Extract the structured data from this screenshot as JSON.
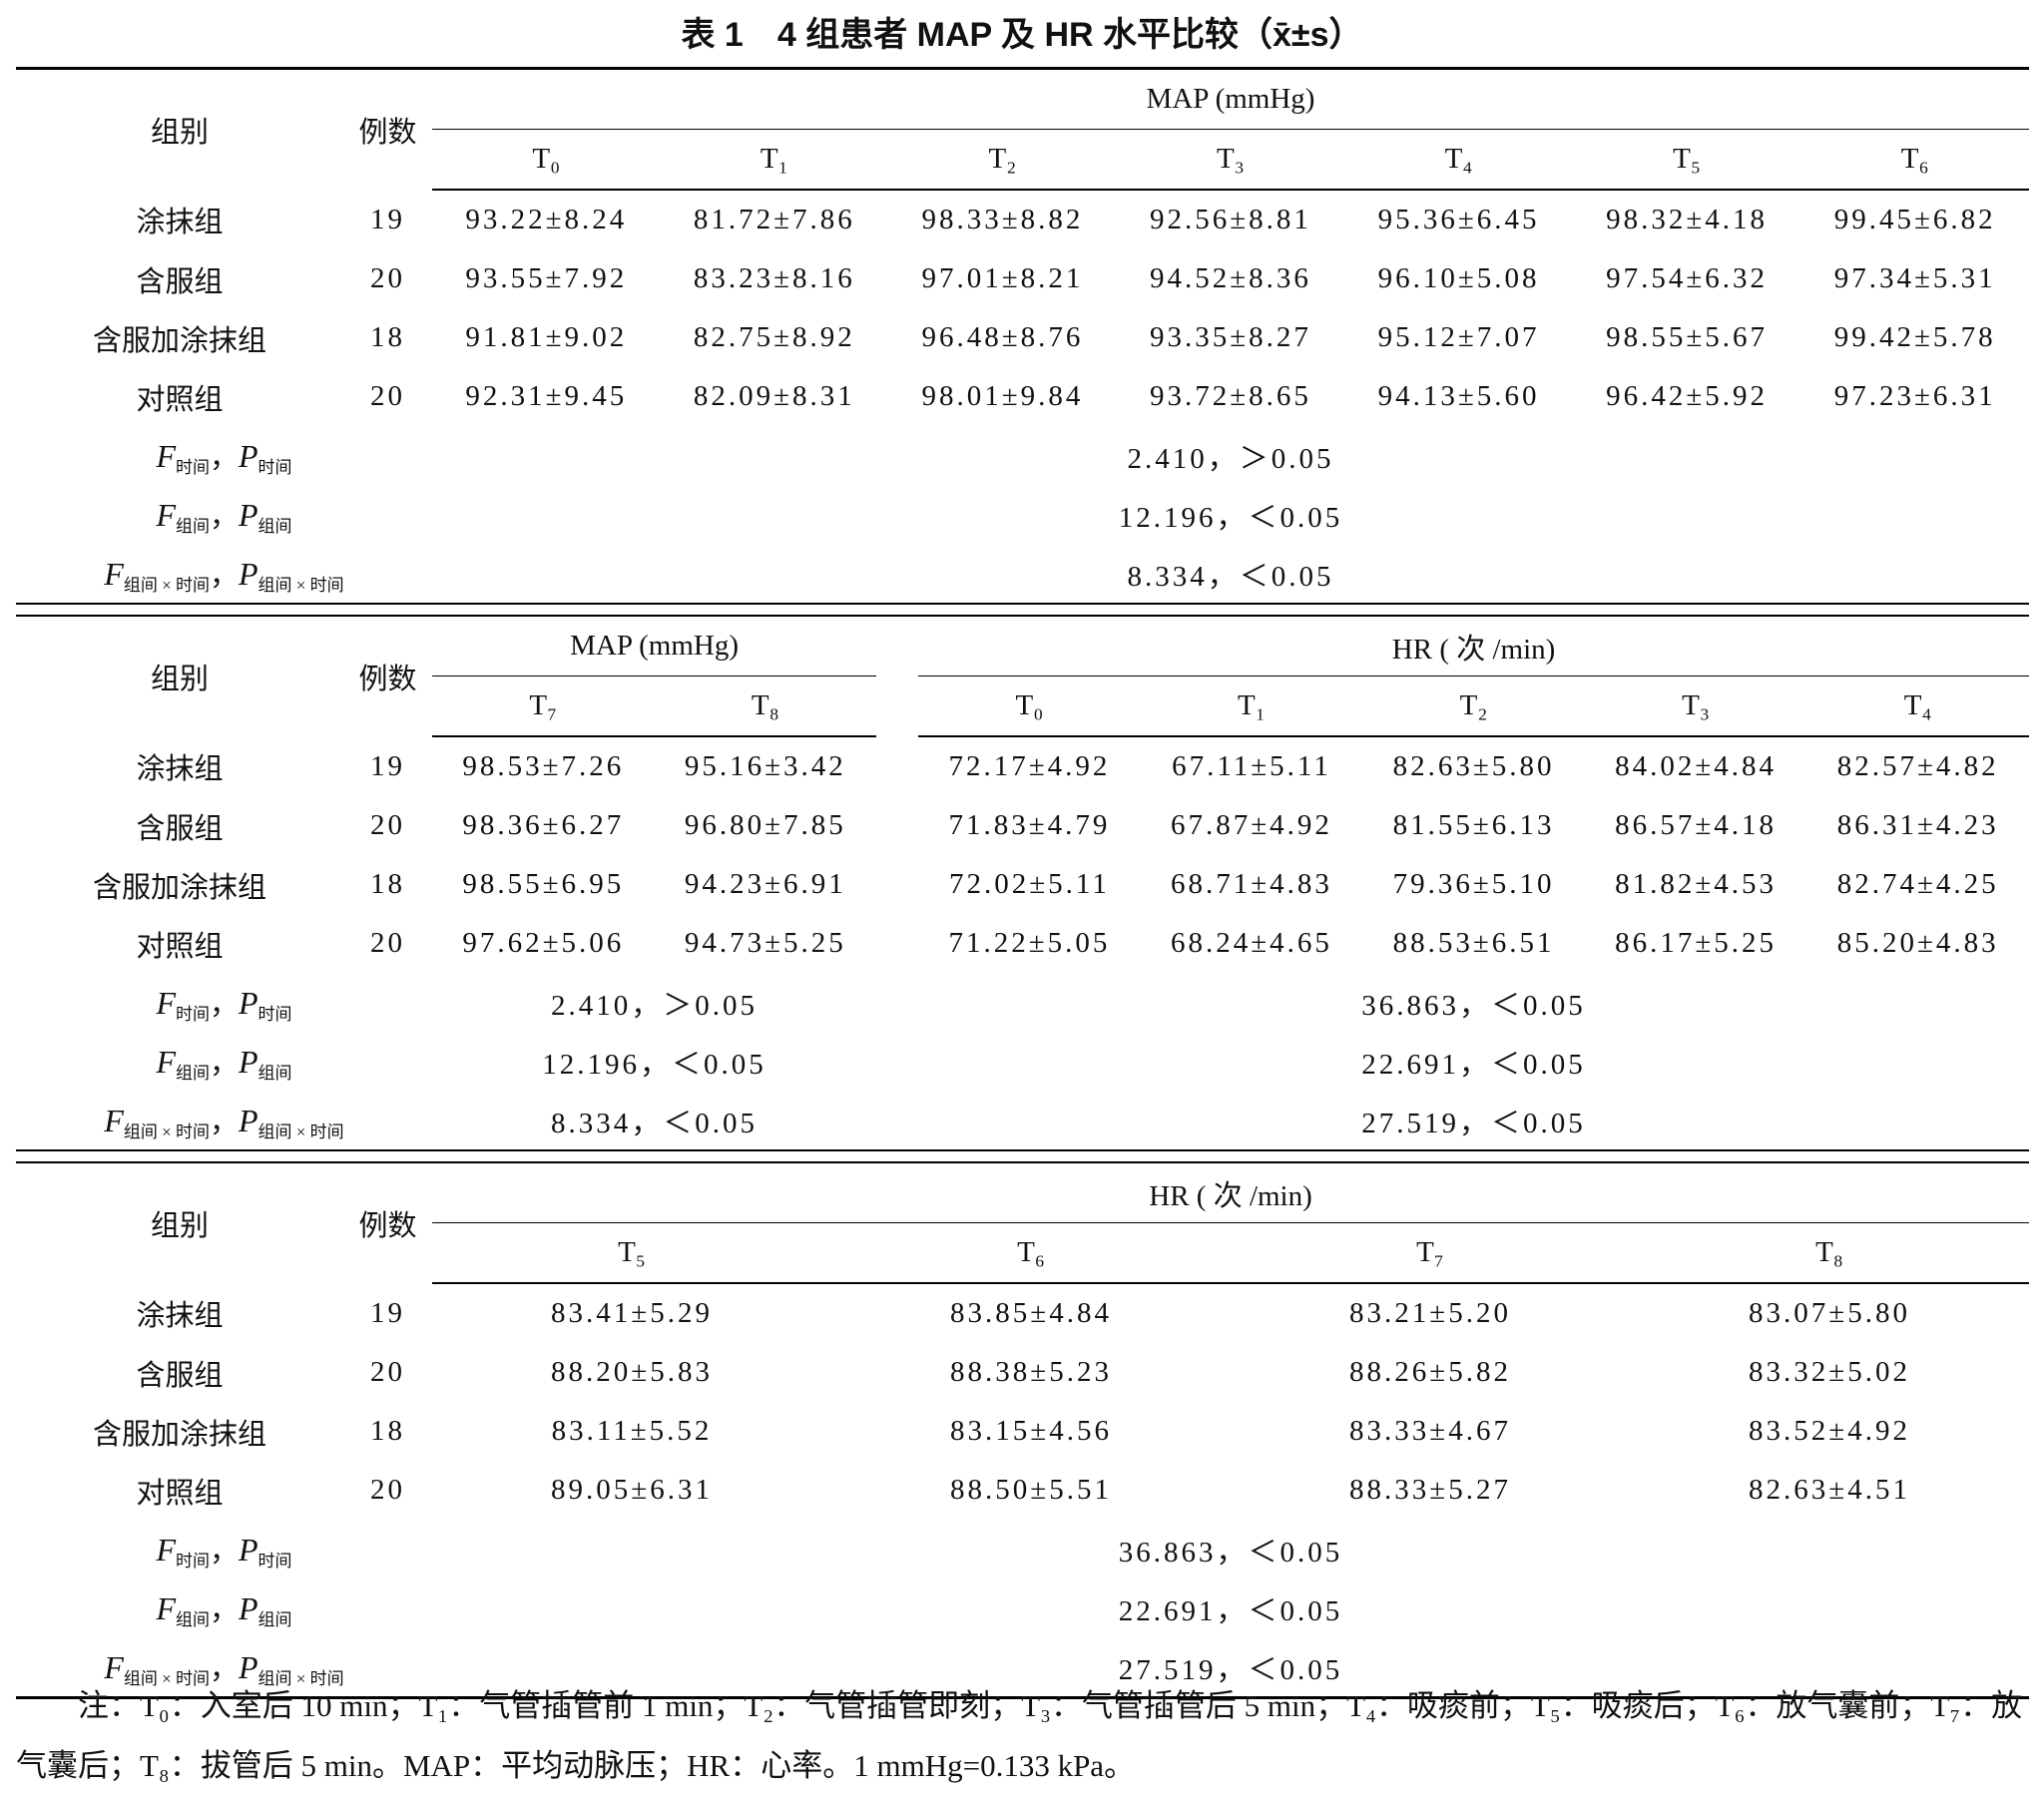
{
  "title": "表 1　4 组患者 MAP 及 HR 水平比较（x̄±s）",
  "sections": [
    {
      "group_header": "组别",
      "n_header": "例数",
      "column_groups": [
        {
          "label": "MAP (mmHg)",
          "times": [
            "T₀",
            "T₁",
            "T₂",
            "T₃",
            "T₄",
            "T₅",
            "T₆"
          ]
        }
      ],
      "rows": [
        {
          "group": "涂抹组",
          "n": 19,
          "values": [
            "93.22±8.24",
            "81.72±7.86",
            "98.33±8.82",
            "92.56±8.81",
            "95.36±6.45",
            "98.32±4.18",
            "99.45±6.82"
          ]
        },
        {
          "group": "含服组",
          "n": 20,
          "values": [
            "93.55±7.92",
            "83.23±8.16",
            "97.01±8.21",
            "94.52±8.36",
            "96.10±5.08",
            "97.54±6.32",
            "97.34±5.31"
          ]
        },
        {
          "group": "含服加涂抹组",
          "n": 18,
          "values": [
            "91.81±9.02",
            "82.75±8.92",
            "96.48±8.76",
            "93.35±8.27",
            "95.12±7.07",
            "98.55±5.67",
            "99.42±5.78"
          ]
        },
        {
          "group": "对照组",
          "n": 20,
          "values": [
            "92.31±9.45",
            "82.09±8.31",
            "98.01±9.84",
            "93.72±8.65",
            "94.13±5.60",
            "96.42±5.92",
            "97.23±6.31"
          ]
        }
      ],
      "stats": [
        {
          "f": "F",
          "f_sub": "时间",
          "sep": "，",
          "p": "P",
          "p_sub": "时间",
          "values": [
            "2.410，＞0.05"
          ]
        },
        {
          "f": "F",
          "f_sub": "组间",
          "sep": "，",
          "p": "P",
          "p_sub": "组间",
          "values": [
            "12.196，＜0.05"
          ]
        },
        {
          "f": "F",
          "f_sub": "组间 × 时间",
          "sep": "，",
          "p": "P",
          "p_sub": "组间 × 时间",
          "values": [
            "8.334，＜0.05"
          ]
        }
      ]
    },
    {
      "group_header": "组别",
      "n_header": "例数",
      "column_groups": [
        {
          "label": "MAP (mmHg)",
          "times": [
            "T₇",
            "T₈"
          ]
        },
        {
          "label": "HR ( 次 /min)",
          "times": [
            "T₀",
            "T₁",
            "T₂",
            "T₃",
            "T₄"
          ]
        }
      ],
      "rows": [
        {
          "group": "涂抹组",
          "n": 19,
          "values": [
            "98.53±7.26",
            "95.16±3.42",
            "72.17±4.92",
            "67.11±5.11",
            "82.63±5.80",
            "84.02±4.84",
            "82.57±4.82"
          ]
        },
        {
          "group": "含服组",
          "n": 20,
          "values": [
            "98.36±6.27",
            "96.80±7.85",
            "71.83±4.79",
            "67.87±4.92",
            "81.55±6.13",
            "86.57±4.18",
            "86.31±4.23"
          ]
        },
        {
          "group": "含服加涂抹组",
          "n": 18,
          "values": [
            "98.55±6.95",
            "94.23±6.91",
            "72.02±5.11",
            "68.71±4.83",
            "79.36±5.10",
            "81.82±4.53",
            "82.74±4.25"
          ]
        },
        {
          "group": "对照组",
          "n": 20,
          "values": [
            "97.62±5.06",
            "94.73±5.25",
            "71.22±5.05",
            "68.24±4.65",
            "88.53±6.51",
            "86.17±5.25",
            "85.20±4.83"
          ]
        }
      ],
      "stats": [
        {
          "f": "F",
          "f_sub": "时间",
          "sep": "，",
          "p": "P",
          "p_sub": "时间",
          "values": [
            "2.410，＞0.05",
            "36.863，＜0.05"
          ]
        },
        {
          "f": "F",
          "f_sub": "组间",
          "sep": "，",
          "p": "P",
          "p_sub": "组间",
          "values": [
            "12.196，＜0.05",
            "22.691，＜0.05"
          ]
        },
        {
          "f": "F",
          "f_sub": "组间 × 时间",
          "sep": "，",
          "p": "P",
          "p_sub": "组间 × 时间",
          "values": [
            "8.334，＜0.05",
            "27.519，＜0.05"
          ]
        }
      ]
    },
    {
      "group_header": "组别",
      "n_header": "例数",
      "column_groups": [
        {
          "label": "HR ( 次 /min)",
          "times": [
            "T₅",
            "T₆",
            "T₇",
            "T₈"
          ]
        }
      ],
      "rows": [
        {
          "group": "涂抹组",
          "n": 19,
          "values": [
            "83.41±5.29",
            "83.85±4.84",
            "83.21±5.20",
            "83.07±5.80"
          ]
        },
        {
          "group": "含服组",
          "n": 20,
          "values": [
            "88.20±5.83",
            "88.38±5.23",
            "88.26±5.82",
            "83.32±5.02"
          ]
        },
        {
          "group": "含服加涂抹组",
          "n": 18,
          "values": [
            "83.11±5.52",
            "83.15±4.56",
            "83.33±4.67",
            "83.52±4.92"
          ]
        },
        {
          "group": "对照组",
          "n": 20,
          "values": [
            "89.05±6.31",
            "88.50±5.51",
            "88.33±5.27",
            "82.63±4.51"
          ]
        }
      ],
      "stats": [
        {
          "f": "F",
          "f_sub": "时间",
          "sep": "，",
          "p": "P",
          "p_sub": "时间",
          "values": [
            "36.863，＜0.05"
          ]
        },
        {
          "f": "F",
          "f_sub": "组间",
          "sep": "，",
          "p": "P",
          "p_sub": "组间",
          "values": [
            "22.691，＜0.05"
          ]
        },
        {
          "f": "F",
          "f_sub": "组间 × 时间",
          "sep": "，",
          "p": "P",
          "p_sub": "组间 × 时间",
          "values": [
            "27.519，＜0.05"
          ]
        }
      ]
    }
  ],
  "note": "注：T₀：入室后 10 min；T₁：气管插管前 1 min；T₂：气管插管即刻；T₃：气管插管后 5 min；T₄：吸痰前；T₅：吸痰后；T₆：放气囊前；T₇：放气囊后；T₈：拔管后 5 min。MAP：平均动脉压；HR：心率。1 mmHg=0.133 kPa。"
}
